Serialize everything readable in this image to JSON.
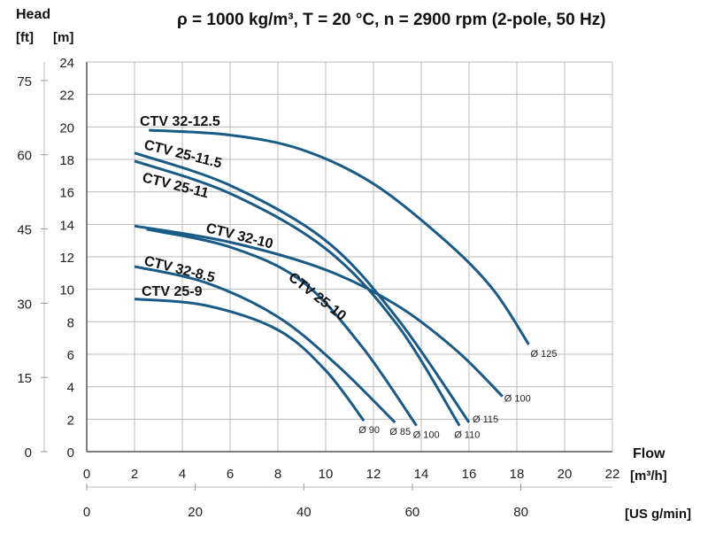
{
  "chart_data": {
    "type": "line",
    "title": "ρ = 1000 kg/m³, T = 20 °C, n = 2900 rpm (2-pole, 50 Hz)",
    "ylabel": "Head",
    "yunit_ft": "[ft]",
    "yunit_m": "[m]",
    "xlabel": "Flow",
    "xunit_m3h": "[m³/h]",
    "xunit_gpm": "[US g/min]",
    "xlim": [
      0,
      22
    ],
    "ylim": [
      0,
      24
    ],
    "x_ticks": [
      0,
      2,
      4,
      6,
      8,
      10,
      12,
      14,
      16,
      18,
      20,
      22
    ],
    "y_ticks": [
      0,
      2,
      4,
      6,
      8,
      10,
      12,
      14,
      16,
      18,
      20,
      22,
      24
    ],
    "ft_ticks": [
      0,
      15,
      30,
      45,
      60,
      75
    ],
    "gpm_ticks": [
      0,
      20,
      40,
      60,
      80
    ],
    "grid": true,
    "color": "#1a5a86",
    "series": [
      {
        "name": "CTV 32-12.5",
        "impeller": "Ø 125",
        "points": [
          [
            2.6,
            19.8
          ],
          [
            6,
            19.5
          ],
          [
            9,
            18.6
          ],
          [
            12,
            16.5
          ],
          [
            15,
            13
          ],
          [
            17,
            10
          ],
          [
            18.5,
            6.6
          ]
        ]
      },
      {
        "name": "CTV 25-11.5",
        "impeller": "Ø 115",
        "points": [
          [
            2,
            18.4
          ],
          [
            6,
            16.4
          ],
          [
            10,
            13
          ],
          [
            13,
            8.2
          ],
          [
            16,
            1.8
          ]
        ]
      },
      {
        "name": "CTV 25-11",
        "impeller": "Ø 110",
        "points": [
          [
            2,
            17.9
          ],
          [
            6,
            15.9
          ],
          [
            10,
            12.5
          ],
          [
            13,
            7.8
          ],
          [
            15.6,
            1.6
          ]
        ]
      },
      {
        "name": "CTV 32-10",
        "impeller": "Ø 100",
        "points": [
          [
            2,
            13.9
          ],
          [
            6,
            12.9
          ],
          [
            10,
            11.2
          ],
          [
            13,
            9
          ],
          [
            15.5,
            6.2
          ],
          [
            17.4,
            3.4
          ]
        ]
      },
      {
        "name": "CTV 25-10",
        "impeller": "Ø 100",
        "points": [
          [
            2.5,
            13.7
          ],
          [
            6,
            12.6
          ],
          [
            9,
            10.5
          ],
          [
            11.5,
            6.5
          ],
          [
            13.8,
            1.6
          ]
        ]
      },
      {
        "name": "CTV 32-8.5",
        "impeller": "Ø 85",
        "points": [
          [
            2,
            11.4
          ],
          [
            5,
            10.4
          ],
          [
            8,
            8.3
          ],
          [
            10.5,
            5.3
          ],
          [
            12.9,
            1.8
          ]
        ]
      },
      {
        "name": "CTV 25-9",
        "impeller": "Ø 90",
        "points": [
          [
            2,
            9.4
          ],
          [
            5,
            9
          ],
          [
            8,
            7.5
          ],
          [
            10,
            5
          ],
          [
            11.6,
            1.9
          ]
        ]
      }
    ]
  }
}
